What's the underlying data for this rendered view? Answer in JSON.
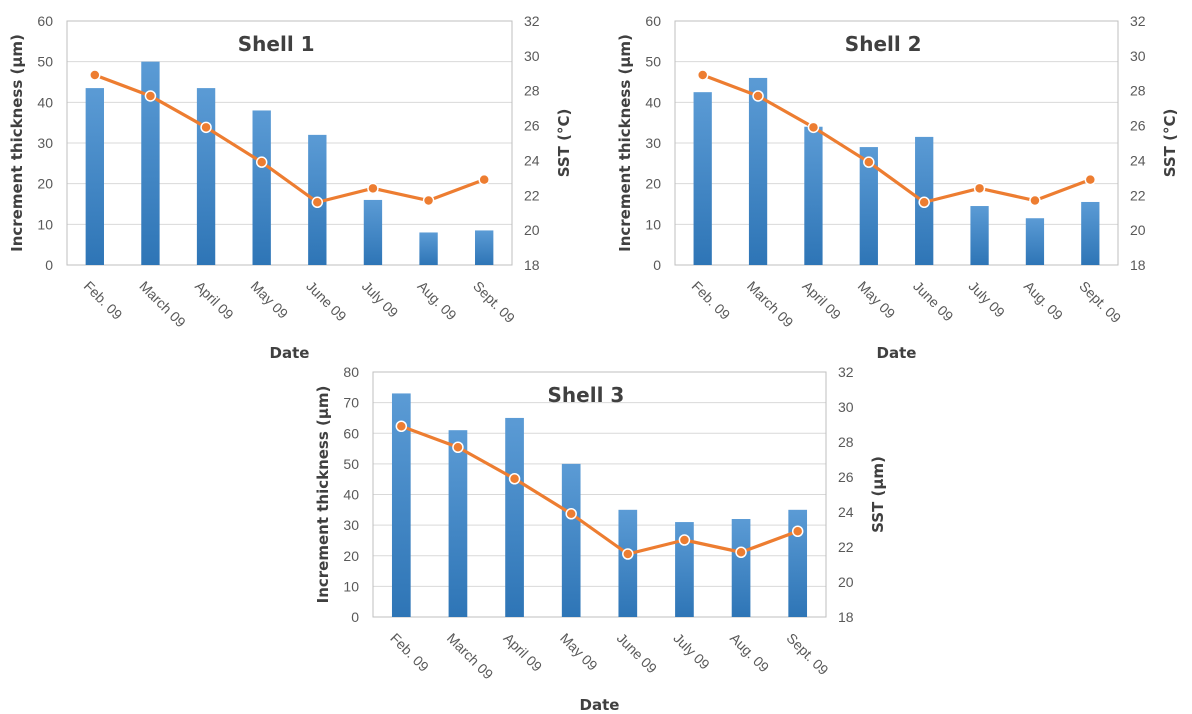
{
  "chart_data": [
    {
      "type": "bar",
      "title": "Shell 1",
      "categories": [
        "Feb. 09",
        "March 09",
        "April 09",
        "May 09",
        "June 09",
        "July 09",
        "Aug. 09",
        "Sept. 09"
      ],
      "xlabel": "Date",
      "ylabel": "Increment thickness (µm)",
      "y2label": "SST (°C)",
      "ylim": [
        0,
        60
      ],
      "y2lim": [
        18,
        32
      ],
      "yticks": [
        0,
        10,
        20,
        30,
        40,
        50,
        60
      ],
      "y2ticks": [
        18,
        20,
        22,
        24,
        26,
        28,
        30,
        32
      ],
      "series": [
        {
          "type": "bar",
          "axis": "left",
          "values": [
            43.5,
            50,
            43.5,
            38,
            32,
            16,
            8,
            8.5
          ]
        },
        {
          "type": "line",
          "axis": "right",
          "values": [
            28.9,
            27.7,
            25.9,
            23.9,
            21.6,
            22.4,
            21.7,
            22.9
          ]
        }
      ],
      "grid": true
    },
    {
      "type": "bar",
      "title": "Shell 2",
      "categories": [
        "Feb. 09",
        "March 09",
        "April 09",
        "May 09",
        "June 09",
        "July 09",
        "Aug. 09",
        "Sept. 09"
      ],
      "xlabel": "Date",
      "ylabel": "Increment thickness (µm)",
      "y2label": "SST (°C)",
      "ylim": [
        0,
        60
      ],
      "y2lim": [
        18,
        32
      ],
      "yticks": [
        0,
        10,
        20,
        30,
        40,
        50,
        60
      ],
      "y2ticks": [
        18,
        20,
        22,
        24,
        26,
        28,
        30,
        32
      ],
      "series": [
        {
          "type": "bar",
          "axis": "left",
          "values": [
            42.5,
            46,
            34,
            29,
            31.5,
            14.5,
            11.5,
            15.5
          ]
        },
        {
          "type": "line",
          "axis": "right",
          "values": [
            28.9,
            27.7,
            25.9,
            23.9,
            21.6,
            22.4,
            21.7,
            22.9
          ]
        }
      ],
      "grid": true
    },
    {
      "type": "bar",
      "title": "Shell 3",
      "categories": [
        "Feb. 09",
        "March 09",
        "April 09",
        "May 09",
        "June 09",
        "July 09",
        "Aug. 09",
        "Sept. 09"
      ],
      "xlabel": "Date",
      "ylabel": "Increment thickness (µm)",
      "y2label": "SST (µm)",
      "ylim": [
        0,
        80
      ],
      "y2lim": [
        18,
        32
      ],
      "yticks": [
        0,
        10,
        20,
        30,
        40,
        50,
        60,
        70,
        80
      ],
      "y2ticks": [
        18,
        20,
        22,
        24,
        26,
        28,
        30,
        32
      ],
      "series": [
        {
          "type": "bar",
          "axis": "left",
          "values": [
            73,
            61,
            65,
            50,
            35,
            31,
            32,
            35
          ]
        },
        {
          "type": "line",
          "axis": "right",
          "values": [
            28.9,
            27.7,
            25.9,
            23.9,
            21.6,
            22.4,
            21.7,
            22.9
          ]
        }
      ],
      "grid": true
    }
  ],
  "colors": {
    "bar_top": "#5b9bd5",
    "bar_bottom": "#2e75b6",
    "line": "#ed7d31",
    "grid": "#d9d9d9",
    "frame": "#bfbfbf"
  }
}
